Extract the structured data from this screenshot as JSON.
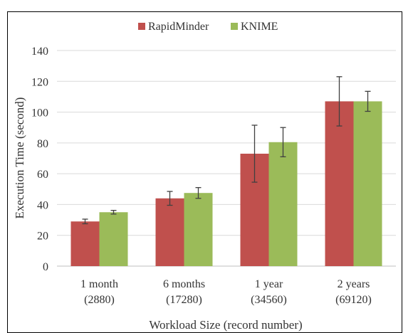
{
  "chart_data": {
    "type": "bar",
    "categories": [
      [
        "1 month",
        "(2880)"
      ],
      [
        "6 months",
        "(17280)"
      ],
      [
        "1 year",
        "(34560)"
      ],
      [
        "2 years",
        "(69120)"
      ]
    ],
    "series": [
      {
        "name": "RapidMinder",
        "color": "#c0504d",
        "values": [
          29,
          44,
          73,
          107
        ],
        "error": [
          1.5,
          4.5,
          18.5,
          16
        ]
      },
      {
        "name": "KNIME",
        "color": "#9bbb59",
        "values": [
          35,
          47.5,
          80.5,
          107
        ],
        "error": [
          1.2,
          3.5,
          9.5,
          6.5
        ]
      }
    ],
    "ylabel": "Execution Time (second)",
    "xlabel": "Workload Size (record number)",
    "ylim": [
      0,
      140
    ],
    "yticks": [
      0,
      20,
      40,
      60,
      80,
      100,
      120,
      140
    ],
    "grid": true,
    "legend": "top-center"
  }
}
